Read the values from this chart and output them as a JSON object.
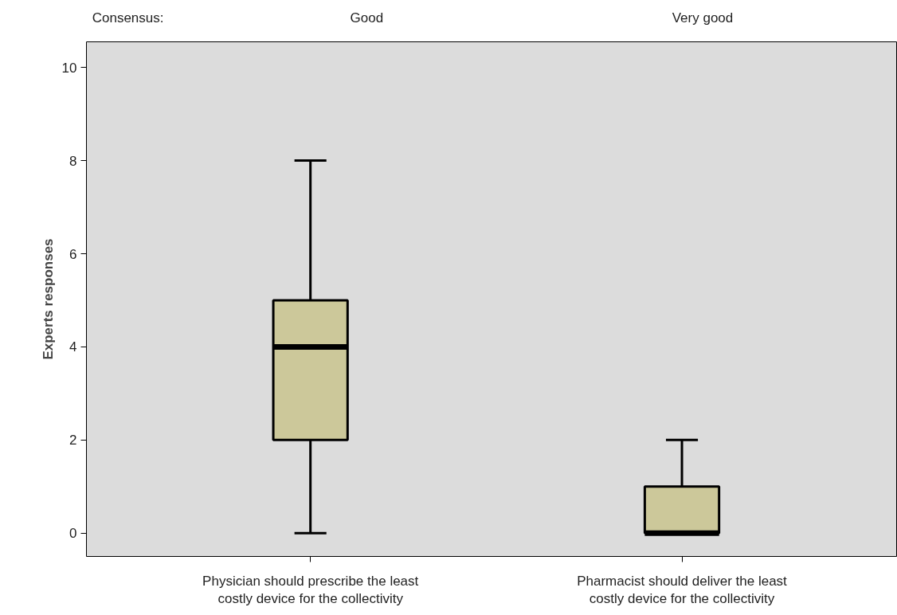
{
  "chart_data": {
    "type": "box",
    "ylabel": "Experts responses",
    "categories": [
      "Physician should prescribe the least\ncostly device for the collectivity",
      "Pharmacist should deliver the least\ncostly device for the collectivity"
    ],
    "boxes": [
      {
        "low": 0,
        "q1": 2,
        "median": 4,
        "q3": 5,
        "high": 8
      },
      {
        "low": 0,
        "q1": 0,
        "median": 0,
        "q3": 1,
        "high": 2
      }
    ],
    "color": "#ccc89a",
    "annotations": [
      "Consensus:",
      "Good",
      "Very good"
    ],
    "ylim": [
      -0.5,
      10.55
    ],
    "yticks": [
      0,
      2,
      4,
      6,
      8,
      10
    ],
    "grid": false
  }
}
